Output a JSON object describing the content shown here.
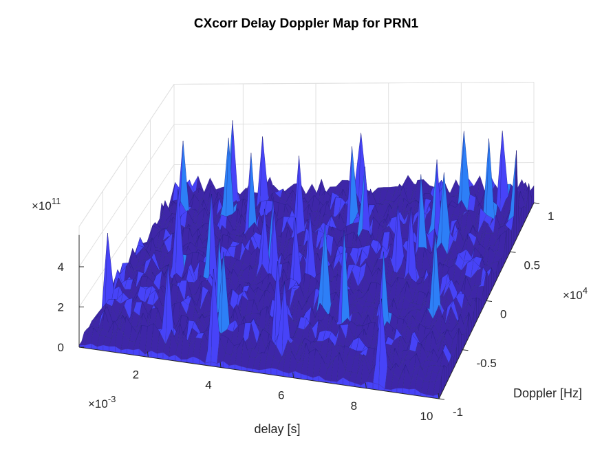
{
  "chart_data": {
    "type": "surface",
    "title": "CXcorr Delay Doppler Map for PRN1",
    "xlabel": "delay [s]",
    "ylabel": "Doppler [Hz]",
    "zlabel": "",
    "x_multiplier": "×10",
    "x_exponent": "-3",
    "y_multiplier": "×10",
    "y_exponent": "4",
    "z_multiplier": "×10",
    "z_exponent": "11",
    "xlim": [
      0.0001,
      0.01
    ],
    "ylim": [
      -10000,
      10000
    ],
    "zlim": [
      0,
      600000000000
    ],
    "x_ticks": [
      0.002,
      0.004,
      0.006,
      0.008,
      0.01
    ],
    "x_tick_labels": [
      "2",
      "4",
      "6",
      "8",
      "10"
    ],
    "y_ticks": [
      -10000,
      -5000,
      0,
      5000,
      10000
    ],
    "y_tick_labels": [
      "-1",
      "-0.5",
      "0",
      "0.5",
      "1"
    ],
    "z_ticks": [
      0,
      200000000000,
      400000000000
    ],
    "z_tick_labels": [
      "0",
      "2",
      "4"
    ],
    "colormap": [
      "#3E26A8",
      "#4743F8",
      "#2D7FF7",
      "#1CAADF",
      "#24C4A0",
      "#8CC840",
      "#E4BA2E",
      "#F9FB15"
    ],
    "surface_edge_color": "#1E1E6E",
    "grid": true,
    "noise_floor_approx": 120000000000,
    "peak_approx": 520000000000
  }
}
